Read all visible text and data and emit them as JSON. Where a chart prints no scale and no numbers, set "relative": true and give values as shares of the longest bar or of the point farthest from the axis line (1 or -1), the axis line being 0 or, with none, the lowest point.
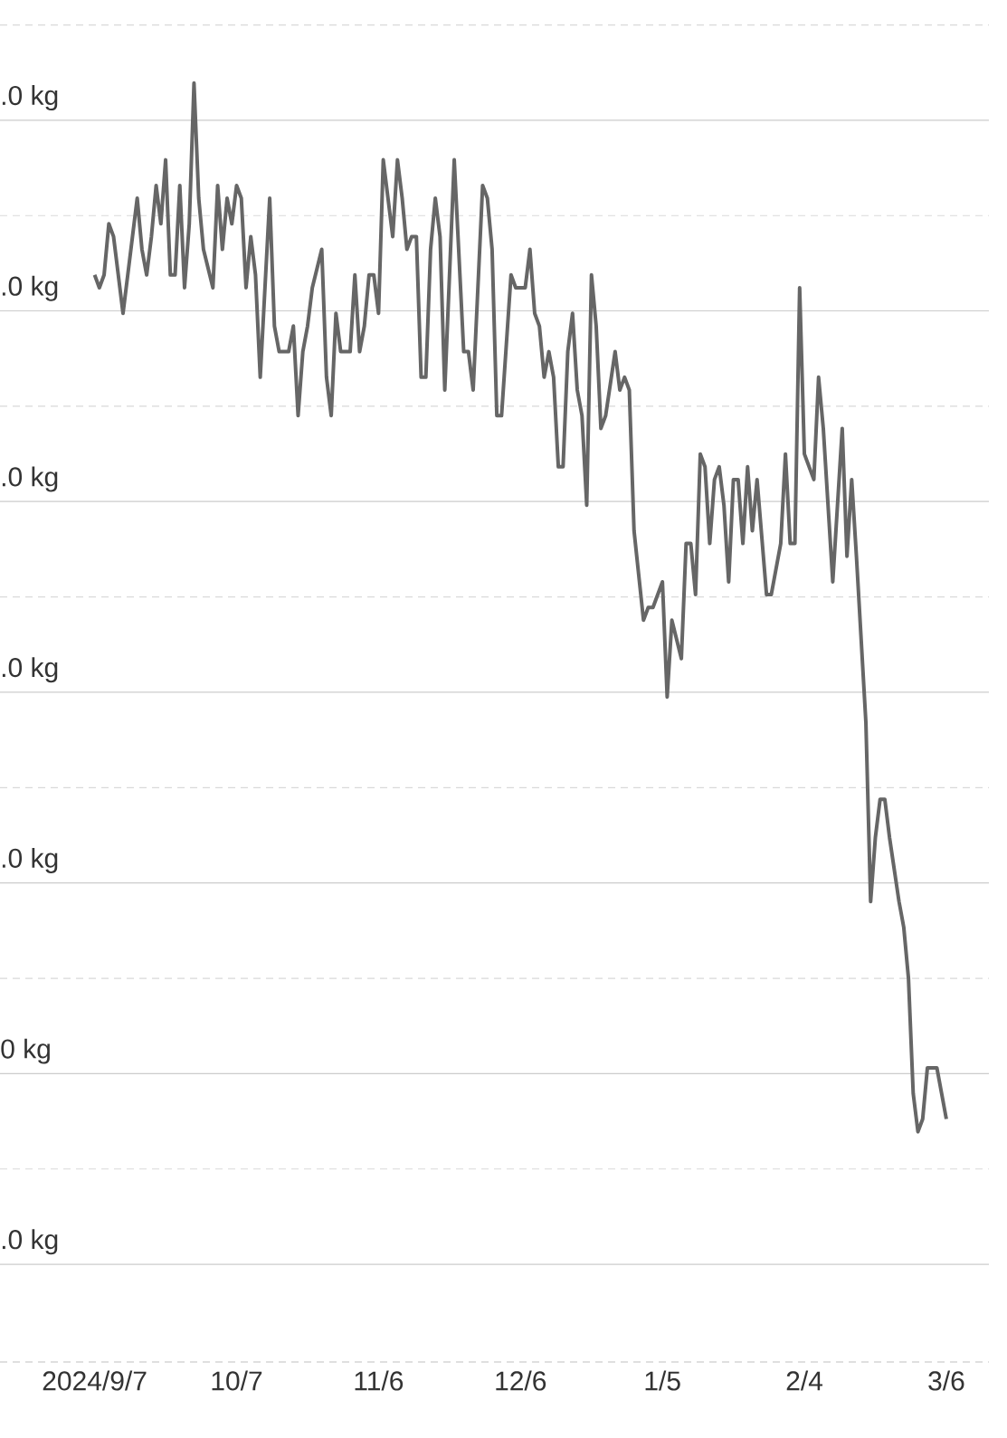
{
  "chart_data": {
    "type": "line",
    "relative": true,
    "color": "#666666",
    "grid": true,
    "annotations": [
      ".0 kg",
      ".0 kg",
      ".0 kg",
      ".0 kg",
      ".0 kg",
      "0 kg",
      ".0 kg"
    ],
    "xlim": [
      "2024-08-18",
      "2025-03-15"
    ],
    "xticks": [
      {
        "value": "2024-09-07",
        "label": "2024/9/7"
      },
      {
        "value": "2024-10-07",
        "label": "10/7"
      },
      {
        "value": "2024-11-06",
        "label": "11/6"
      },
      {
        "value": "2024-12-06",
        "label": "12/6"
      },
      {
        "value": "2025-01-05",
        "label": "1/5"
      },
      {
        "value": "2025-02-04",
        "label": "2/4"
      },
      {
        "value": "2025-03-06",
        "label": "3/6"
      }
    ],
    "x": [
      "2024-09-07",
      "2024-09-08",
      "2024-09-09",
      "2024-09-10",
      "2024-09-11",
      "2024-09-13",
      "2024-09-16",
      "2024-09-17",
      "2024-09-18",
      "2024-09-19",
      "2024-09-20",
      "2024-09-21",
      "2024-09-22",
      "2024-09-23",
      "2024-09-24",
      "2024-09-25",
      "2024-09-26",
      "2024-09-27",
      "2024-09-28",
      "2024-09-29",
      "2024-09-30",
      "2024-10-02",
      "2024-10-03",
      "2024-10-04",
      "2024-10-05",
      "2024-10-06",
      "2024-10-07",
      "2024-10-08",
      "2024-10-09",
      "2024-10-10",
      "2024-10-11",
      "2024-10-12",
      "2024-10-14",
      "2024-10-15",
      "2024-10-16",
      "2024-10-18",
      "2024-10-19",
      "2024-10-20",
      "2024-10-21",
      "2024-10-22",
      "2024-10-23",
      "2024-10-25",
      "2024-10-26",
      "2024-10-27",
      "2024-10-28",
      "2024-10-29",
      "2024-10-31",
      "2024-11-01",
      "2024-11-02",
      "2024-11-03",
      "2024-11-04",
      "2024-11-05",
      "2024-11-06",
      "2024-11-07",
      "2024-11-09",
      "2024-11-10",
      "2024-11-11",
      "2024-11-12",
      "2024-11-13",
      "2024-11-14",
      "2024-11-15",
      "2024-11-16",
      "2024-11-17",
      "2024-11-18",
      "2024-11-19",
      "2024-11-20",
      "2024-11-22",
      "2024-11-24",
      "2024-11-25",
      "2024-11-26",
      "2024-11-28",
      "2024-11-29",
      "2024-11-30",
      "2024-12-01",
      "2024-12-02",
      "2024-12-04",
      "2024-12-05",
      "2024-12-07",
      "2024-12-08",
      "2024-12-09",
      "2024-12-10",
      "2024-12-11",
      "2024-12-12",
      "2024-12-13",
      "2024-12-14",
      "2024-12-15",
      "2024-12-16",
      "2024-12-17",
      "2024-12-18",
      "2024-12-19",
      "2024-12-20",
      "2024-12-21",
      "2024-12-22",
      "2024-12-23",
      "2024-12-24",
      "2024-12-26",
      "2024-12-27",
      "2024-12-28",
      "2024-12-29",
      "2024-12-30",
      "2025-01-01",
      "2025-01-02",
      "2025-01-03",
      "2025-01-05",
      "2025-01-06",
      "2025-01-07",
      "2025-01-09",
      "2025-01-10",
      "2025-01-11",
      "2025-01-12",
      "2025-01-13",
      "2025-01-14",
      "2025-01-15",
      "2025-01-16",
      "2025-01-17",
      "2025-01-18",
      "2025-01-19",
      "2025-01-20",
      "2025-01-21",
      "2025-01-22",
      "2025-01-23",
      "2025-01-24",
      "2025-01-25",
      "2025-01-27",
      "2025-01-28",
      "2025-01-30",
      "2025-01-31",
      "2025-02-01",
      "2025-02-02",
      "2025-02-03",
      "2025-02-04",
      "2025-02-06",
      "2025-02-07",
      "2025-02-08",
      "2025-02-10",
      "2025-02-12",
      "2025-02-13",
      "2025-02-14",
      "2025-02-15",
      "2025-02-17",
      "2025-02-18",
      "2025-02-19",
      "2025-02-20",
      "2025-02-21",
      "2025-02-22",
      "2025-02-24",
      "2025-02-25",
      "2025-02-26",
      "2025-02-27",
      "2025-02-28",
      "2025-03-01",
      "2025-03-02",
      "2025-03-04",
      "2025-03-05",
      "2025-03-06"
    ],
    "values": [
      0.85,
      0.84,
      0.85,
      0.89,
      0.88,
      0.82,
      0.91,
      0.87,
      0.85,
      0.88,
      0.92,
      0.89,
      0.94,
      0.85,
      0.85,
      0.92,
      0.84,
      0.89,
      1,
      0.91,
      0.87,
      0.84,
      0.92,
      0.87,
      0.91,
      0.89,
      0.92,
      0.91,
      0.84,
      0.88,
      0.85,
      0.77,
      0.91,
      0.81,
      0.79,
      0.79,
      0.81,
      0.74,
      0.79,
      0.81,
      0.84,
      0.87,
      0.77,
      0.74,
      0.82,
      0.79,
      0.79,
      0.85,
      0.79,
      0.81,
      0.85,
      0.85,
      0.82,
      0.94,
      0.88,
      0.94,
      0.91,
      0.87,
      0.88,
      0.88,
      0.77,
      0.77,
      0.87,
      0.91,
      0.88,
      0.76,
      0.94,
      0.79,
      0.79,
      0.76,
      0.92,
      0.91,
      0.87,
      0.74,
      0.74,
      0.85,
      0.84,
      0.84,
      0.87,
      0.82,
      0.81,
      0.77,
      0.79,
      0.77,
      0.7,
      0.7,
      0.79,
      0.82,
      0.76,
      0.74,
      0.67,
      0.85,
      0.81,
      0.73,
      0.74,
      0.79,
      0.76,
      0.77,
      0.76,
      0.65,
      0.58,
      0.59,
      0.59,
      0.61,
      0.52,
      0.58,
      0.55,
      0.64,
      0.64,
      0.6,
      0.71,
      0.7,
      0.64,
      0.69,
      0.7,
      0.67,
      0.61,
      0.69,
      0.69,
      0.64,
      0.7,
      0.65,
      0.69,
      0.6,
      0.6,
      0.64,
      0.71,
      0.64,
      0.64,
      0.84,
      0.71,
      0.69,
      0.77,
      0.73,
      0.61,
      0.73,
      0.63,
      0.69,
      0.63,
      0.5,
      0.36,
      0.41,
      0.44,
      0.44,
      0.41,
      0.36,
      0.34,
      0.3,
      0.21,
      0.18,
      0.19,
      0.23,
      0.23,
      0.21,
      0.19
    ]
  }
}
